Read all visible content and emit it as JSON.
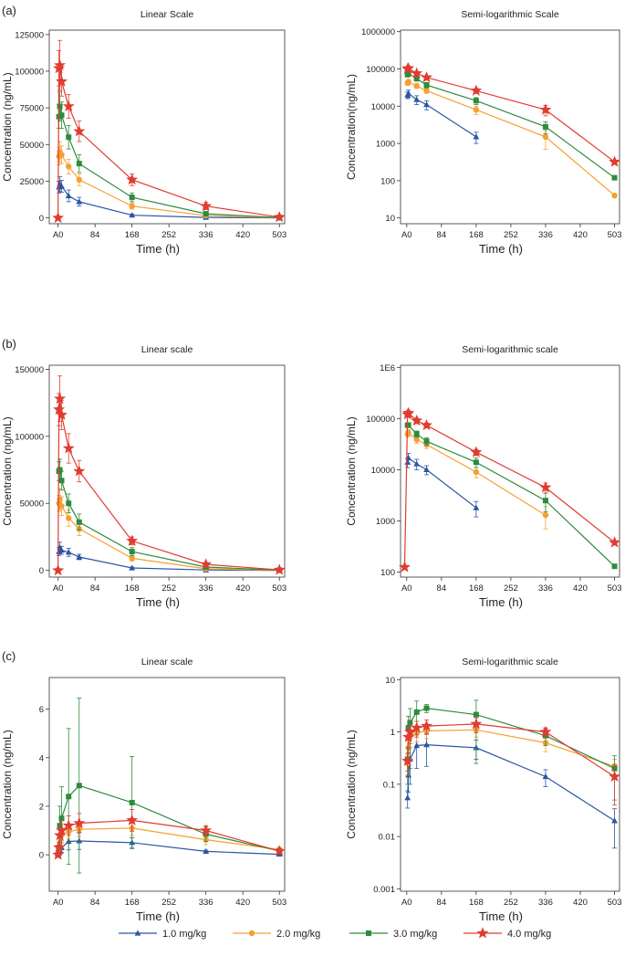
{
  "panel_labels": [
    "(a)",
    "(b)",
    "(c)"
  ],
  "legend": {
    "items": [
      {
        "label": "1.0 mg/kg",
        "color": "#2a56a5",
        "marker": "triangle"
      },
      {
        "label": "2.0 mg/kg",
        "color": "#f5a031",
        "marker": "circle"
      },
      {
        "label": "3.0 mg/kg",
        "color": "#2e8b3e",
        "marker": "square"
      },
      {
        "label": "4.0 mg/kg",
        "color": "#e03c31",
        "marker": "star"
      }
    ]
  },
  "chart_data": [
    {
      "type": "line",
      "panel": "(a)",
      "title": "Linear Scale",
      "scale": "linear",
      "xlabel": "Time   (h)",
      "ylabel": "Concentration (ng/mL)",
      "xticks": [
        {
          "v": 0,
          "label": "A0"
        },
        {
          "v": 84,
          "label": "84"
        },
        {
          "v": 168,
          "label": "168"
        },
        {
          "v": 252,
          "label": "252"
        },
        {
          "v": 336,
          "label": "336"
        },
        {
          "v": 420,
          "label": "420"
        },
        {
          "v": 503,
          "label": "503"
        }
      ],
      "yticks": [
        {
          "v": 0,
          "label": "0"
        },
        {
          "v": 25000,
          "label": "25000"
        },
        {
          "v": 50000,
          "label": "50000"
        },
        {
          "v": 75000,
          "label": "75000"
        },
        {
          "v": 100000,
          "label": "100000"
        },
        {
          "v": 125000,
          "label": "125000"
        }
      ],
      "xlim": [
        -20,
        515
      ],
      "ylim": [
        -4000,
        128000
      ],
      "series": [
        {
          "x": [
            2,
            4,
            8,
            24,
            48,
            168,
            336,
            503
          ],
          "y": [
            21000,
            23000,
            21500,
            15000,
            11000,
            1800,
            300,
            0
          ],
          "err": [
            4000,
            5000,
            4000,
            4000,
            3000,
            800,
            200,
            0
          ]
        },
        {
          "x": [
            2,
            4,
            8,
            24,
            48,
            168,
            336,
            503
          ],
          "y": [
            42000,
            45000,
            43000,
            35000,
            26000,
            8000,
            1500,
            100
          ],
          "err": [
            6000,
            7000,
            6000,
            5000,
            4000,
            2000,
            800,
            50
          ]
        },
        {
          "x": [
            2,
            4,
            8,
            24,
            48,
            168,
            336,
            503
          ],
          "y": [
            69000,
            76000,
            70000,
            55000,
            37000,
            14000,
            2800,
            200
          ],
          "err": [
            8000,
            10000,
            9000,
            8000,
            6000,
            3000,
            1000,
            100
          ]
        },
        {
          "x": [
            0,
            2,
            4,
            8,
            24,
            48,
            168,
            336,
            503
          ],
          "y": [
            0,
            102000,
            104000,
            93000,
            76000,
            59000,
            26000,
            8000,
            500
          ],
          "err": [
            0,
            12000,
            17000,
            10000,
            8000,
            7000,
            4000,
            2500,
            200
          ]
        }
      ]
    },
    {
      "type": "line",
      "panel": "(a)",
      "title": "Semi-logarithmic Scale",
      "scale": "log",
      "xlabel": "Time   (h)",
      "ylabel": "Concentration(ng/mL)",
      "xticks": [
        {
          "v": 0,
          "label": "A0"
        },
        {
          "v": 84,
          "label": "84"
        },
        {
          "v": 168,
          "label": "168"
        },
        {
          "v": 252,
          "label": "252"
        },
        {
          "v": 336,
          "label": "336"
        },
        {
          "v": 420,
          "label": "420"
        },
        {
          "v": 503,
          "label": "503"
        }
      ],
      "yticks": [
        {
          "v": 10,
          "label": "10"
        },
        {
          "v": 100,
          "label": "100"
        },
        {
          "v": 1000,
          "label": "1000"
        },
        {
          "v": 10000,
          "label": "10000"
        },
        {
          "v": 100000,
          "label": "100000"
        },
        {
          "v": 1000000,
          "label": "1000000"
        }
      ],
      "xlim": [
        -15,
        515
      ],
      "ylim": [
        7,
        1100000
      ],
      "series": [
        {
          "x": [
            2,
            4,
            24,
            48,
            168
          ],
          "y": [
            20000,
            22000,
            15000,
            11000,
            1500
          ],
          "err": [
            4000,
            5000,
            4000,
            3000,
            500
          ]
        },
        {
          "x": [
            2,
            4,
            24,
            48,
            168,
            336,
            503
          ],
          "y": [
            42000,
            45000,
            35000,
            26000,
            8000,
            1500,
            40
          ],
          "err": [
            6000,
            7000,
            5000,
            4000,
            2000,
            800,
            5
          ]
        },
        {
          "x": [
            2,
            4,
            24,
            48,
            168,
            336,
            503
          ],
          "y": [
            70000,
            76000,
            55000,
            37000,
            14000,
            2800,
            120
          ],
          "err": [
            8000,
            10000,
            8000,
            6000,
            3000,
            1000,
            15
          ]
        },
        {
          "x": [
            2,
            4,
            24,
            48,
            168,
            336,
            503
          ],
          "y": [
            100000,
            104000,
            76000,
            59000,
            26000,
            8000,
            320
          ],
          "err": [
            12000,
            17000,
            8000,
            7000,
            4000,
            2500,
            30
          ]
        }
      ]
    },
    {
      "type": "line",
      "panel": "(b)",
      "title": "Linear scale",
      "scale": "linear",
      "xlabel": "Time   (h)",
      "ylabel": "Concentration (ng/mL)",
      "xticks": [
        {
          "v": 0,
          "label": "A0"
        },
        {
          "v": 84,
          "label": "84"
        },
        {
          "v": 168,
          "label": "168"
        },
        {
          "v": 252,
          "label": "252"
        },
        {
          "v": 336,
          "label": "336"
        },
        {
          "v": 420,
          "label": "420"
        },
        {
          "v": 503,
          "label": "503"
        }
      ],
      "yticks": [
        {
          "v": 0,
          "label": "0"
        },
        {
          "v": 50000,
          "label": "50000"
        },
        {
          "v": 100000,
          "label": "100000"
        },
        {
          "v": 150000,
          "label": "150000"
        }
      ],
      "xlim": [
        -20,
        515
      ],
      "ylim": [
        -5000,
        153000
      ],
      "series": [
        {
          "x": [
            2,
            4,
            8,
            24,
            48,
            168,
            336,
            503
          ],
          "y": [
            14000,
            17000,
            15000,
            13500,
            10000,
            1800,
            300,
            0
          ],
          "err": [
            3000,
            4000,
            3000,
            3000,
            2000,
            600,
            100,
            0
          ]
        },
        {
          "x": [
            2,
            4,
            8,
            24,
            48,
            168,
            336,
            503
          ],
          "y": [
            50000,
            53000,
            48000,
            39000,
            31000,
            9000,
            1200,
            100
          ],
          "err": [
            6000,
            8000,
            7000,
            6000,
            5000,
            2000,
            500,
            50
          ]
        },
        {
          "x": [
            2,
            4,
            8,
            24,
            48,
            168,
            336,
            503
          ],
          "y": [
            74000,
            75000,
            67000,
            50000,
            36000,
            14000,
            2500,
            150
          ],
          "err": [
            7000,
            8000,
            7000,
            7000,
            6000,
            3000,
            1000,
            50
          ]
        },
        {
          "x": [
            0,
            2,
            4,
            8,
            24,
            48,
            168,
            336,
            503
          ],
          "y": [
            0,
            120000,
            128000,
            116000,
            91000,
            74000,
            22000,
            4500,
            400
          ],
          "err": [
            0,
            12000,
            17000,
            11000,
            11000,
            8000,
            3000,
            1000,
            100
          ]
        }
      ]
    },
    {
      "type": "line",
      "panel": "(b)",
      "title": "Semi-logarithmic scale",
      "scale": "log",
      "xlabel": "Time   (h)",
      "ylabel": "Concentration (ng/mL)",
      "xticks": [
        {
          "v": 0,
          "label": "A0"
        },
        {
          "v": 84,
          "label": "84"
        },
        {
          "v": 168,
          "label": "168"
        },
        {
          "v": 252,
          "label": "252"
        },
        {
          "v": 336,
          "label": "336"
        },
        {
          "v": 420,
          "label": "420"
        },
        {
          "v": 503,
          "label": "503"
        }
      ],
      "yticks": [
        {
          "v": 100,
          "label": "100"
        },
        {
          "v": 1000,
          "label": "1000"
        },
        {
          "v": 10000,
          "label": "10000"
        },
        {
          "v": 100000,
          "label": "100000"
        },
        {
          "v": 1000000,
          "label": "1E6"
        }
      ],
      "xlim": [
        -15,
        515
      ],
      "ylim": [
        80,
        1100000
      ],
      "series": [
        {
          "x": [
            2,
            4,
            24,
            48,
            168
          ],
          "y": [
            14000,
            17000,
            13000,
            10000,
            1800
          ],
          "err": [
            3000,
            4000,
            3000,
            2000,
            600
          ]
        },
        {
          "x": [
            2,
            4,
            24,
            48,
            168,
            336
          ],
          "y": [
            50000,
            53000,
            39000,
            31000,
            9000,
            1300
          ],
          "err": [
            6000,
            8000,
            6000,
            5000,
            2000,
            600
          ]
        },
        {
          "x": [
            2,
            4,
            24,
            48,
            168,
            336,
            503
          ],
          "y": [
            74000,
            75000,
            50000,
            36000,
            14000,
            2500,
            130
          ],
          "err": [
            7000,
            8000,
            7000,
            6000,
            3000,
            1000,
            10
          ]
        },
        {
          "x": [
            -5,
            2,
            4,
            24,
            48,
            168,
            336,
            503
          ],
          "y": [
            125,
            120000,
            128000,
            91000,
            74000,
            22000,
            4500,
            380
          ],
          "err": [
            0,
            12000,
            17000,
            11000,
            8000,
            3000,
            1000,
            30
          ]
        }
      ]
    },
    {
      "type": "line",
      "panel": "(c)",
      "title": "Linear scale",
      "scale": "linear",
      "xlabel": "Time   (h)",
      "ylabel": "Concentration (ng/mL)",
      "xticks": [
        {
          "v": 0,
          "label": "A0"
        },
        {
          "v": 84,
          "label": "84"
        },
        {
          "v": 168,
          "label": "168"
        },
        {
          "v": 252,
          "label": "252"
        },
        {
          "v": 336,
          "label": "336"
        },
        {
          "v": 420,
          "label": "420"
        },
        {
          "v": 503,
          "label": "503"
        }
      ],
      "yticks": [
        {
          "v": 0,
          "label": "0"
        },
        {
          "v": 2,
          "label": "2"
        },
        {
          "v": 4,
          "label": "4"
        },
        {
          "v": 6,
          "label": "6"
        }
      ],
      "xlim": [
        -20,
        515
      ],
      "ylim": [
        -1.5,
        7.3
      ],
      "series": [
        {
          "x": [
            0,
            2,
            4,
            8,
            24,
            48,
            168,
            336,
            503
          ],
          "y": [
            0,
            0.06,
            0.15,
            0.3,
            0.55,
            0.57,
            0.5,
            0.14,
            0.02
          ],
          "err": [
            0,
            0.02,
            0.08,
            0.2,
            0.35,
            0.35,
            0.2,
            0.05,
            0.015
          ]
        },
        {
          "x": [
            0,
            2,
            4,
            8,
            24,
            48,
            168,
            336,
            503
          ],
          "y": [
            0,
            0.25,
            0.5,
            0.8,
            0.95,
            1.05,
            1.1,
            0.62,
            0.22
          ],
          "err": [
            0,
            0.1,
            0.2,
            0.3,
            0.3,
            0.3,
            0.3,
            0.2,
            0.08
          ]
        },
        {
          "x": [
            0,
            2,
            4,
            8,
            24,
            48,
            168,
            336,
            503
          ],
          "y": [
            0,
            0.3,
            1.2,
            1.5,
            2.4,
            2.85,
            2.15,
            0.85,
            0.16
          ],
          "err": [
            0,
            0.2,
            0.8,
            1.3,
            2.8,
            3.6,
            1.9,
            0.3,
            0.1
          ]
        },
        {
          "x": [
            0,
            2,
            4,
            8,
            24,
            48,
            168,
            336,
            503
          ],
          "y": [
            0,
            0.3,
            0.8,
            1.0,
            1.2,
            1.3,
            1.42,
            1.0,
            0.15
          ],
          "err": [
            0,
            0.1,
            0.3,
            0.4,
            0.4,
            0.4,
            0.45,
            0.2,
            0.1
          ]
        }
      ]
    },
    {
      "type": "line",
      "panel": "(c)",
      "title": "Semi-logarithmic scale",
      "scale": "log",
      "xlabel": "Time   (h)",
      "ylabel": "Concentration (ng/mL)",
      "xticks": [
        {
          "v": 0,
          "label": "A0"
        },
        {
          "v": 84,
          "label": "84"
        },
        {
          "v": 168,
          "label": "168"
        },
        {
          "v": 252,
          "label": "252"
        },
        {
          "v": 336,
          "label": "336"
        },
        {
          "v": 420,
          "label": "420"
        },
        {
          "v": 503,
          "label": "503"
        }
      ],
      "yticks": [
        {
          "v": 0.001,
          "label": "0.001"
        },
        {
          "v": 0.01,
          "label": "0.01"
        },
        {
          "v": 0.1,
          "label": "0.1"
        },
        {
          "v": 1,
          "label": "1"
        },
        {
          "v": 10,
          "label": "10"
        }
      ],
      "xlim": [
        -15,
        515
      ],
      "ylim": [
        0.0009,
        11
      ],
      "series": [
        {
          "x": [
            2,
            4,
            8,
            24,
            48,
            168,
            336,
            503
          ],
          "y": [
            0.055,
            0.15,
            0.3,
            0.55,
            0.57,
            0.5,
            0.14,
            0.02
          ],
          "err": [
            0.02,
            0.08,
            0.2,
            0.35,
            0.35,
            0.2,
            0.05,
            0.014
          ]
        },
        {
          "x": [
            2,
            4,
            8,
            24,
            48,
            168,
            336,
            503
          ],
          "y": [
            0.25,
            0.5,
            0.8,
            0.95,
            1.05,
            1.1,
            0.62,
            0.22
          ],
          "err": [
            0.1,
            0.2,
            0.3,
            0.3,
            0.3,
            0.3,
            0.2,
            0.08
          ]
        },
        {
          "x": [
            2,
            4,
            8,
            24,
            48,
            168,
            336,
            503
          ],
          "y": [
            0.3,
            1.2,
            1.5,
            2.4,
            2.85,
            2.15,
            0.85,
            0.2
          ],
          "err": [
            0.2,
            0.8,
            1.3,
            1.5,
            0.5,
            1.9,
            0.3,
            0.15
          ]
        },
        {
          "x": [
            2,
            4,
            8,
            24,
            48,
            168,
            336,
            503
          ],
          "y": [
            0.28,
            0.8,
            1.0,
            1.2,
            1.3,
            1.42,
            1.0,
            0.14
          ],
          "err": [
            0.1,
            0.3,
            0.4,
            0.4,
            0.4,
            0.45,
            0.2,
            0.1
          ]
        }
      ]
    }
  ]
}
